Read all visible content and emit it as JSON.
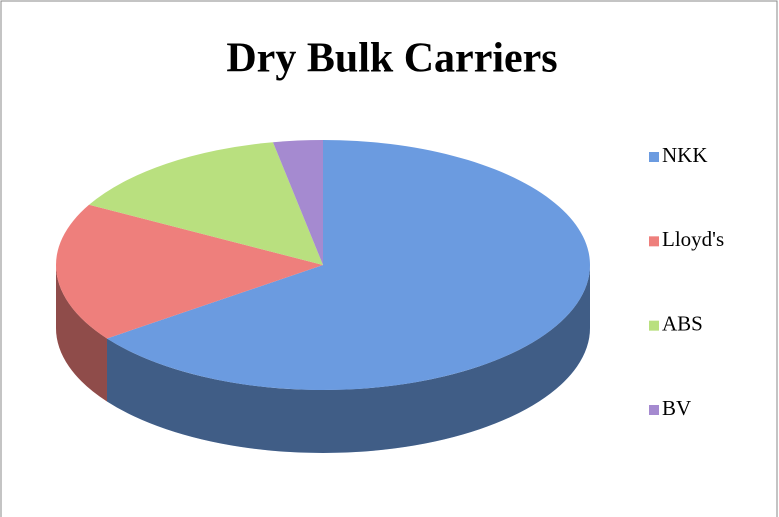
{
  "chart_data": {
    "type": "pie",
    "title": "Dry Bulk Carriers",
    "categories": [
      "NKK",
      "Lloyd's",
      "ABS",
      "BV"
    ],
    "values": [
      65,
      18,
      14,
      3
    ],
    "colors": [
      "#6b9be0",
      "#ee7f7c",
      "#b9e07f",
      "#a58ad0"
    ],
    "legend": "right"
  }
}
